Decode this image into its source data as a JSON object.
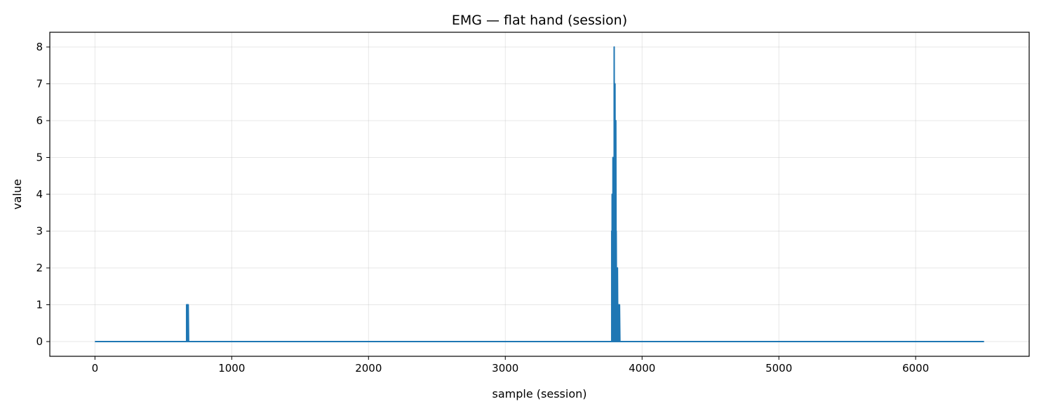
{
  "chart_data": {
    "type": "line",
    "title": "EMG — flat hand (session)",
    "xlabel": "sample (session)",
    "ylabel": "value",
    "xlim": [
      -330,
      6830
    ],
    "ylim": [
      -0.4,
      8.4
    ],
    "xticks": [
      0,
      1000,
      2000,
      3000,
      4000,
      5000,
      6000
    ],
    "yticks": [
      0,
      1,
      2,
      3,
      4,
      5,
      6,
      7,
      8
    ],
    "grid": true,
    "legend": "none",
    "series": [
      {
        "color": "#1f77b4",
        "x": [
          0,
          670,
          670,
          673,
          673,
          676,
          676,
          679,
          679,
          682,
          682,
          685,
          685,
          3778,
          3778,
          3781,
          3781,
          3784,
          3784,
          3787,
          3787,
          3790,
          3790,
          3793,
          3793,
          3796,
          3796,
          3799,
          3799,
          3802,
          3802,
          3805,
          3805,
          3808,
          3808,
          3811,
          3811,
          3814,
          3814,
          3817,
          3817,
          3820,
          3820,
          3823,
          3823,
          3826,
          3826,
          3829,
          3829,
          3832,
          3832,
          3835,
          3835,
          3838,
          3838,
          6500
        ],
        "y": [
          0,
          0,
          1,
          0,
          1,
          0,
          1,
          0,
          1,
          0,
          1,
          0,
          0,
          0,
          3,
          0,
          4,
          0,
          2,
          0,
          5,
          0,
          3,
          0,
          5,
          0,
          8,
          0,
          4,
          0,
          7,
          0,
          5,
          0,
          6,
          0,
          3,
          0,
          2,
          0,
          1,
          0,
          2,
          0,
          1,
          0,
          1,
          0,
          1,
          0,
          1,
          0,
          1,
          0,
          0,
          0
        ]
      }
    ]
  }
}
